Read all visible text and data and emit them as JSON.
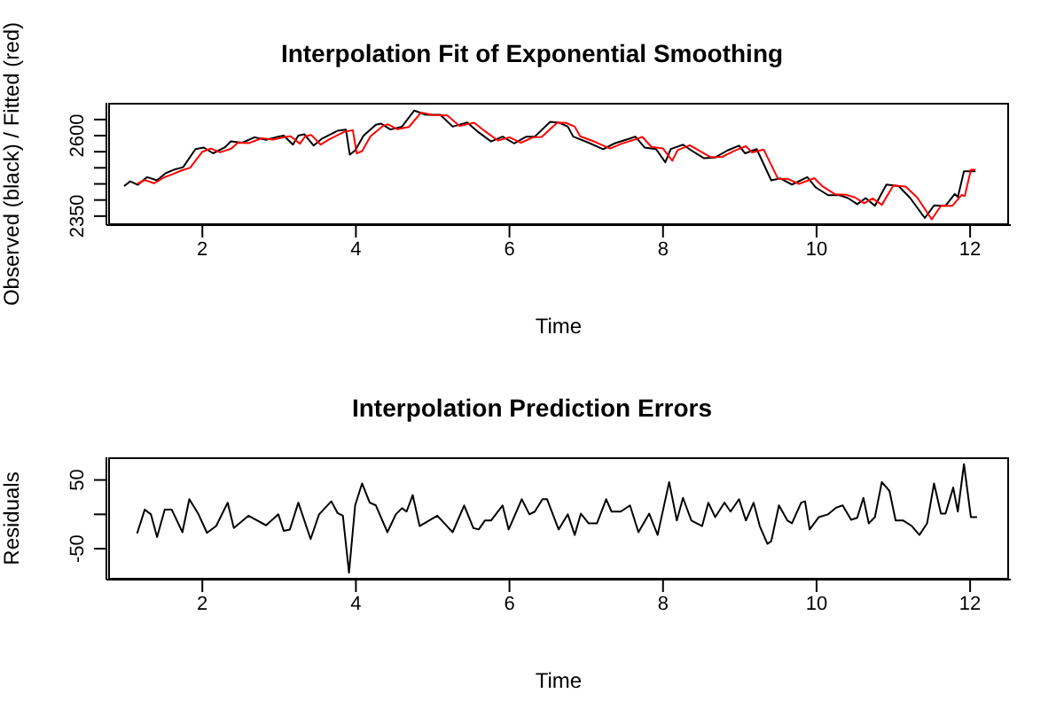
{
  "chart_data": [
    {
      "type": "line",
      "title": "Interpolation Fit of Exponential Smoothing",
      "xlabel": "Time",
      "ylabel": "Observed (black) / Fitted (red)",
      "xlim": [
        0.75,
        12.53
      ],
      "ylim": [
        2322,
        2702
      ],
      "xticks": [
        2,
        4,
        6,
        8,
        10,
        12
      ],
      "yticks": [
        2350,
        {
          "value": 2400,
          "label": null
        },
        {
          "value": 2450,
          "label": null
        },
        {
          "value": 2500,
          "label": null
        },
        {
          "value": 2550,
          "label": null
        },
        2600,
        {
          "value": 2650,
          "label": null
        }
      ],
      "line_style": "solid",
      "marker": "none",
      "series": [
        {
          "color": "#000000",
          "x": [
            0.98,
            1.06,
            1.16,
            1.28,
            1.41,
            1.52,
            1.64,
            1.75,
            1.91,
            2.02,
            2.14,
            2.29,
            2.37,
            2.52,
            2.68,
            2.83,
            2.99,
            3.06,
            3.18,
            3.25,
            3.33,
            3.45,
            3.56,
            3.76,
            3.87,
            3.92,
            3.99,
            4.1,
            4.26,
            4.33,
            4.45,
            4.6,
            4.76,
            4.91,
            5.1,
            5.26,
            5.45,
            5.6,
            5.76,
            5.91,
            6.06,
            6.22,
            6.33,
            6.53,
            6.64,
            6.76,
            6.83,
            7.03,
            7.22,
            7.37,
            7.57,
            7.64,
            7.76,
            7.91,
            8.03,
            8.1,
            8.26,
            8.37,
            8.53,
            8.68,
            8.84,
            8.99,
            9.07,
            9.22,
            9.41,
            9.53,
            9.68,
            9.88,
            9.99,
            10.15,
            10.3,
            10.41,
            10.53,
            10.64,
            10.76,
            10.91,
            11.07,
            11.22,
            11.41,
            11.53,
            11.68,
            11.8,
            11.84,
            11.92,
            12.07
          ],
          "values": [
            2443,
            2458,
            2447,
            2471,
            2461,
            2483,
            2495,
            2502,
            2558,
            2563,
            2545,
            2563,
            2582,
            2578,
            2595,
            2587,
            2597,
            2600,
            2572,
            2600,
            2604,
            2569,
            2591,
            2615,
            2619,
            2541,
            2554,
            2600,
            2634,
            2637,
            2619,
            2628,
            2678,
            2665,
            2665,
            2628,
            2641,
            2610,
            2582,
            2597,
            2576,
            2597,
            2597,
            2643,
            2641,
            2628,
            2597,
            2578,
            2558,
            2576,
            2591,
            2597,
            2563,
            2558,
            2517,
            2558,
            2572,
            2554,
            2530,
            2532,
            2554,
            2569,
            2545,
            2558,
            2461,
            2467,
            2448,
            2471,
            2439,
            2415,
            2415,
            2406,
            2387,
            2406,
            2382,
            2448,
            2443,
            2406,
            2344,
            2383,
            2382,
            2419,
            2409,
            2489,
            2489
          ]
        },
        {
          "color": "#ff0000",
          "x": [
            1.15,
            1.25,
            1.37,
            1.5,
            1.61,
            1.73,
            1.84,
            2.0,
            2.11,
            2.23,
            2.38,
            2.46,
            2.61,
            2.77,
            2.92,
            3.08,
            3.15,
            3.27,
            3.34,
            3.42,
            3.54,
            3.65,
            3.85,
            3.96,
            4.01,
            4.08,
            4.19,
            4.35,
            4.42,
            4.54,
            4.69,
            4.85,
            5.0,
            5.19,
            5.35,
            5.54,
            5.69,
            5.85,
            6.0,
            6.15,
            6.31,
            6.42,
            6.62,
            6.73,
            6.85,
            6.92,
            7.12,
            7.31,
            7.46,
            7.66,
            7.73,
            7.85,
            8.0,
            8.12,
            8.19,
            8.35,
            8.46,
            8.62,
            8.77,
            8.93,
            9.08,
            9.16,
            9.31,
            9.5,
            9.62,
            9.77,
            9.97,
            10.08,
            10.24,
            10.39,
            10.5,
            10.62,
            10.73,
            10.85,
            11.0,
            11.16,
            11.31,
            11.5,
            11.62,
            11.77,
            11.89,
            11.93,
            12.01,
            12.07
          ],
          "values": [
            2450,
            2462,
            2452,
            2470,
            2480,
            2492,
            2500,
            2550,
            2560,
            2548,
            2560,
            2578,
            2577,
            2592,
            2588,
            2596,
            2598,
            2575,
            2598,
            2602,
            2572,
            2588,
            2612,
            2617,
            2545,
            2552,
            2598,
            2630,
            2635,
            2620,
            2627,
            2672,
            2664,
            2663,
            2630,
            2640,
            2612,
            2585,
            2595,
            2578,
            2595,
            2596,
            2640,
            2640,
            2628,
            2598,
            2580,
            2560,
            2575,
            2590,
            2596,
            2565,
            2560,
            2522,
            2555,
            2570,
            2555,
            2533,
            2534,
            2553,
            2567,
            2548,
            2557,
            2465,
            2466,
            2450,
            2468,
            2442,
            2418,
            2416,
            2408,
            2390,
            2405,
            2385,
            2445,
            2442,
            2408,
            2340,
            2382,
            2382,
            2416,
            2412,
            2494,
            2494
          ]
        }
      ]
    },
    {
      "type": "line",
      "title": "Interpolation Prediction Errors",
      "xlabel": "Time",
      "ylabel": "Residuals",
      "xlim": [
        0.75,
        12.53
      ],
      "ylim": [
        -95,
        83
      ],
      "xticks": [
        2,
        4,
        6,
        8,
        10,
        12
      ],
      "yticks": [
        -50,
        {
          "value": 0,
          "label": null
        },
        50
      ],
      "line_style": "solid",
      "marker": "none",
      "series": [
        {
          "color": "#000000",
          "x": [
            1.15,
            1.25,
            1.33,
            1.41,
            1.51,
            1.6,
            1.74,
            1.83,
            1.95,
            2.06,
            2.18,
            2.33,
            2.41,
            2.6,
            2.83,
            2.99,
            3.06,
            3.14,
            3.25,
            3.41,
            3.52,
            3.68,
            3.76,
            3.83,
            3.91,
            3.99,
            4.08,
            4.18,
            4.26,
            4.41,
            4.52,
            4.6,
            4.66,
            4.74,
            4.83,
            5.06,
            5.26,
            5.41,
            5.53,
            5.6,
            5.68,
            5.76,
            5.91,
            5.99,
            6.16,
            6.26,
            6.33,
            6.43,
            6.49,
            6.64,
            6.76,
            6.85,
            6.93,
            7.03,
            7.14,
            7.26,
            7.33,
            7.45,
            7.57,
            7.68,
            7.82,
            7.93,
            8.08,
            8.18,
            8.26,
            8.37,
            8.51,
            8.59,
            8.68,
            8.8,
            8.88,
            8.99,
            9.08,
            9.18,
            9.26,
            9.36,
            9.41,
            9.51,
            9.62,
            9.68,
            9.8,
            9.85,
            9.91,
            10.03,
            10.15,
            10.26,
            10.34,
            10.45,
            10.53,
            10.61,
            10.68,
            10.76,
            10.85,
            10.95,
            11.03,
            11.13,
            11.24,
            11.34,
            11.44,
            11.53,
            11.62,
            11.68,
            11.78,
            11.84,
            11.92,
            12.01,
            12.09
          ],
          "values": [
            -28,
            7,
            0,
            -33,
            7,
            7,
            -26,
            22,
            0,
            -27,
            -17,
            17,
            -20,
            -2,
            -16,
            0,
            -24,
            -22,
            17,
            -36,
            0,
            19,
            2,
            -2,
            -85,
            13,
            45,
            17,
            13,
            -26,
            0,
            9,
            4,
            28,
            -17,
            -2,
            -26,
            13,
            -20,
            -22,
            -9,
            -9,
            13,
            -22,
            22,
            0,
            4,
            22,
            22,
            -22,
            0,
            -30,
            1,
            -13,
            -13,
            22,
            4,
            4,
            13,
            -26,
            1,
            -30,
            47,
            -9,
            24,
            -9,
            -17,
            17,
            -4,
            17,
            4,
            22,
            -9,
            17,
            -17,
            -43,
            -39,
            13,
            -9,
            -13,
            17,
            19,
            -22,
            -4,
            0,
            10,
            13,
            -8,
            -5,
            24,
            -13,
            -4,
            47,
            34,
            -9,
            -9,
            -17,
            -30,
            -13,
            45,
            1,
            1,
            39,
            4,
            73,
            -4,
            -4
          ]
        }
      ]
    }
  ]
}
